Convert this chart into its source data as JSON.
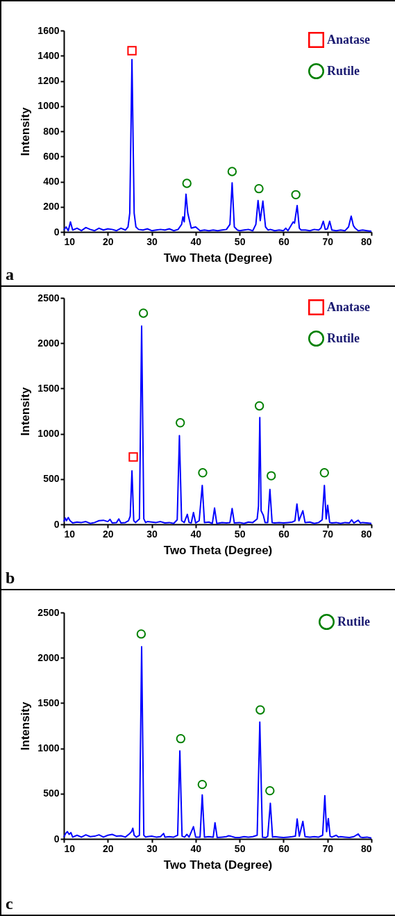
{
  "chart_data": [
    {
      "type": "line",
      "xlabel": "Two Theta (Degree)",
      "ylabel": "Intensity",
      "xlim": [
        10,
        80
      ],
      "xticks": [
        10,
        20,
        30,
        40,
        50,
        60,
        70,
        80
      ],
      "ylim": [
        0,
        1600
      ],
      "yticks": [
        0,
        200,
        400,
        600,
        800,
        1000,
        1200,
        1400,
        1600
      ],
      "legend": "top right",
      "annotations": [
        "a"
      ],
      "series": [
        {
          "color": "#0000ff",
          "x": [
            10,
            10.5,
            11,
            11.5,
            12,
            13,
            14,
            15,
            16,
            17,
            18,
            19,
            20,
            21,
            22,
            23,
            24,
            24.6,
            25,
            25.5,
            26,
            26.4,
            27,
            28,
            29,
            30,
            31,
            32,
            33,
            34,
            35,
            36,
            36.8,
            37.1,
            37.4,
            37.8,
            38.2,
            38.6,
            39,
            40,
            41,
            42,
            43,
            44,
            45,
            46,
            47,
            47.8,
            48.3,
            48.8,
            49.5,
            50,
            51,
            52,
            53,
            53.7,
            54.2,
            54.7,
            55.3,
            55.9,
            56.5,
            57,
            58,
            59,
            60,
            60.5,
            61,
            62.2,
            62.5,
            63.1,
            63.6,
            64,
            65,
            66,
            67,
            68,
            68.5,
            69.05,
            69.5,
            70,
            70.5,
            71,
            72,
            73,
            74,
            74.8,
            75.4,
            75.9,
            76.3,
            77,
            78,
            79,
            80
          ],
          "values": [
            15,
            40,
            10,
            80,
            15,
            30,
            10,
            35,
            20,
            10,
            30,
            15,
            25,
            20,
            10,
            30,
            15,
            40,
            150,
            1370,
            150,
            40,
            20,
            15,
            25,
            10,
            15,
            20,
            15,
            25,
            10,
            20,
            60,
            120,
            80,
            300,
            150,
            90,
            30,
            40,
            10,
            15,
            10,
            15,
            10,
            15,
            20,
            60,
            390,
            40,
            15,
            10,
            15,
            20,
            10,
            60,
            250,
            90,
            245,
            40,
            15,
            20,
            10,
            15,
            10,
            30,
            10,
            80,
            70,
            210,
            30,
            15,
            15,
            10,
            20,
            15,
            30,
            85,
            20,
            25,
            85,
            15,
            10,
            15,
            10,
            40,
            125,
            50,
            30,
            10,
            15,
            10,
            5
          ]
        },
        {
          "name": "Anatase",
          "type": "scatter",
          "marker": "square",
          "color": "#ff0000",
          "x": [
            25.5
          ],
          "values": [
            1440
          ]
        },
        {
          "name": "Rutile",
          "type": "scatter",
          "marker": "circle",
          "color": "#008000",
          "x": [
            38.0,
            48.3,
            54.4,
            62.8
          ],
          "values": [
            386,
            480,
            344,
            296
          ]
        }
      ]
    },
    {
      "type": "line",
      "xlabel": "Two Theta (Degree)",
      "ylabel": "Intensity",
      "xlim": [
        10,
        80
      ],
      "xticks": [
        10,
        20,
        30,
        40,
        50,
        60,
        70,
        80
      ],
      "ylim": [
        0,
        2500
      ],
      "yticks": [
        0,
        500,
        1000,
        1500,
        2000,
        2500
      ],
      "legend": "top right",
      "annotations": [
        "b"
      ],
      "series": [
        {
          "color": "#0000ff",
          "x": [
            10,
            10.3,
            10.6,
            11,
            11.4,
            12,
            13,
            14,
            15,
            16,
            17,
            18,
            19,
            20,
            20.5,
            21,
            22,
            22.5,
            23,
            24,
            24.7,
            25.1,
            25.5,
            25.9,
            26.3,
            27.2,
            27.7,
            28.2,
            28.6,
            29,
            30,
            31,
            32,
            33,
            34,
            35,
            35.8,
            36.3,
            36.8,
            37.4,
            38.1,
            38.5,
            39,
            39.5,
            40,
            40.8,
            41.5,
            42,
            43,
            43.8,
            44.3,
            44.8,
            46,
            47,
            47.8,
            48.3,
            48.8,
            50,
            51,
            52,
            53,
            54,
            54.3,
            54.6,
            54.9,
            55.4,
            55.8,
            56.4,
            56.9,
            57.4,
            58,
            59,
            60,
            61,
            62,
            62.6,
            63.05,
            63.5,
            64.4,
            64.9,
            66,
            67,
            68,
            68.8,
            69.3,
            69.7,
            70.05,
            70.5,
            71,
            72,
            73,
            74,
            75,
            75.5,
            76,
            77,
            77.5,
            78,
            79,
            80
          ],
          "values": [
            30,
            70,
            40,
            75,
            40,
            15,
            25,
            20,
            30,
            10,
            20,
            40,
            45,
            30,
            55,
            15,
            20,
            60,
            15,
            20,
            40,
            90,
            590,
            40,
            20,
            60,
            2190,
            60,
            20,
            30,
            25,
            20,
            30,
            15,
            20,
            10,
            50,
            980,
            40,
            20,
            110,
            20,
            15,
            130,
            15,
            40,
            430,
            20,
            25,
            10,
            180,
            10,
            20,
            15,
            20,
            175,
            15,
            20,
            10,
            25,
            20,
            60,
            200,
            1180,
            150,
            100,
            20,
            20,
            385,
            20,
            15,
            20,
            15,
            20,
            25,
            40,
            225,
            40,
            150,
            20,
            25,
            10,
            20,
            50,
            430,
            60,
            210,
            20,
            15,
            20,
            10,
            20,
            15,
            50,
            15,
            45,
            15,
            20,
            15,
            10
          ]
        },
        {
          "name": "Anatase",
          "type": "scatter",
          "marker": "square",
          "color": "#ff0000",
          "x": [
            25.8
          ],
          "values": [
            744
          ]
        },
        {
          "name": "Rutile",
          "type": "scatter",
          "marker": "circle",
          "color": "#008000",
          "x": [
            28.1,
            36.5,
            41.6,
            54.5,
            57.2,
            69.3
          ],
          "values": [
            2331,
            1121,
            569,
            1308,
            536,
            569
          ]
        }
      ]
    },
    {
      "type": "line",
      "xlabel": "Two Theta (Degree)",
      "ylabel": "Intensity",
      "xlim": [
        10,
        80
      ],
      "xticks": [
        10,
        20,
        30,
        40,
        50,
        60,
        70,
        80
      ],
      "ylim": [
        0,
        2500
      ],
      "yticks": [
        0,
        500,
        1000,
        1500,
        2000,
        2500
      ],
      "legend": "top right",
      "annotations": [
        "c"
      ],
      "series": [
        {
          "color": "#0000ff",
          "x": [
            10,
            10.4,
            10.8,
            11.2,
            11.6,
            12,
            13,
            14,
            15,
            16,
            17,
            18,
            19,
            20,
            21,
            22,
            23,
            24,
            25,
            25.4,
            25.7,
            26,
            26.5,
            27.2,
            27.7,
            28.2,
            28.6,
            29,
            30,
            31,
            32,
            32.7,
            33,
            34,
            35,
            35.9,
            36.4,
            36.9,
            37.5,
            38,
            38.5,
            39.5,
            40,
            41,
            41.5,
            42,
            43,
            44,
            44.4,
            44.9,
            46,
            47,
            47.5,
            48,
            49,
            50,
            51,
            52,
            53,
            54,
            54.6,
            55.2,
            56,
            56.4,
            57,
            57.5,
            58,
            59,
            60,
            61,
            62,
            62.7,
            63.1,
            63.6,
            64.4,
            64.9,
            66,
            67,
            68,
            68.9,
            69.4,
            69.8,
            70.2,
            70.6,
            71,
            72,
            72.5,
            73,
            74,
            75,
            76,
            77,
            77.5,
            78,
            79,
            80
          ],
          "values": [
            20,
            60,
            80,
            50,
            70,
            20,
            40,
            20,
            45,
            25,
            30,
            45,
            20,
            40,
            50,
            30,
            35,
            20,
            60,
            80,
            118,
            40,
            20,
            40,
            2122,
            40,
            20,
            25,
            30,
            20,
            25,
            60,
            20,
            25,
            20,
            40,
            972,
            30,
            20,
            50,
            20,
            135,
            20,
            20,
            486,
            20,
            25,
            20,
            179,
            15,
            20,
            25,
            35,
            30,
            15,
            15,
            25,
            20,
            25,
            40,
            1291,
            20,
            15,
            30,
            394,
            20,
            25,
            20,
            15,
            20,
            25,
            30,
            220,
            30,
            194,
            25,
            20,
            25,
            20,
            40,
            478,
            80,
            225,
            30,
            20,
            40,
            20,
            25,
            20,
            15,
            25,
            55,
            20,
            15,
            20,
            10
          ]
        },
        {
          "name": "Rutile",
          "type": "scatter",
          "marker": "circle",
          "color": "#008000",
          "x": [
            27.6,
            36.6,
            41.5,
            54.7,
            56.9
          ],
          "values": [
            2263,
            1107,
            601,
            1425,
            532
          ]
        }
      ]
    }
  ]
}
